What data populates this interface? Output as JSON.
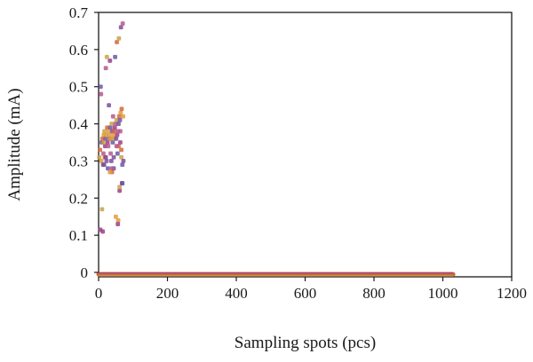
{
  "chart_data": {
    "type": "scatter",
    "title": "",
    "xlabel": "Sampling spots (pcs)",
    "ylabel": "Amplitude (mA)",
    "xlim": [
      0,
      1200
    ],
    "ylim": [
      -0.01,
      0.7
    ],
    "xticks": [
      "0",
      "200",
      "400",
      "600",
      "800",
      "1000",
      "1200"
    ],
    "yticks": [
      "0",
      "0.1",
      "0.2",
      "0.3",
      "0.4",
      "0.5",
      "0.6",
      "0.7"
    ],
    "grid": false,
    "palette": [
      "#c8a24a",
      "#d1683d",
      "#9b3f88",
      "#6a58a8",
      "#b9578c",
      "#e29a3c",
      "#7c4f9a"
    ],
    "points": [
      [
        2,
        0.31
      ],
      [
        4,
        0.33
      ],
      [
        5,
        0.115
      ],
      [
        6,
        0.5
      ],
      [
        7,
        0.48
      ],
      [
        8,
        0.3
      ],
      [
        9,
        0.35
      ],
      [
        10,
        0.17
      ],
      [
        11,
        0.36
      ],
      [
        12,
        0.11
      ],
      [
        13,
        0.29
      ],
      [
        14,
        0.32
      ],
      [
        15,
        0.37
      ],
      [
        16,
        0.29
      ],
      [
        17,
        0.38
      ],
      [
        18,
        0.31
      ],
      [
        19,
        0.34
      ],
      [
        20,
        0.36
      ],
      [
        21,
        0.55
      ],
      [
        22,
        0.37
      ],
      [
        23,
        0.3
      ],
      [
        24,
        0.58
      ],
      [
        25,
        0.39
      ],
      [
        26,
        0.35
      ],
      [
        27,
        0.28
      ],
      [
        28,
        0.34
      ],
      [
        29,
        0.38
      ],
      [
        30,
        0.45
      ],
      [
        31,
        0.37
      ],
      [
        32,
        0.36
      ],
      [
        33,
        0.57
      ],
      [
        34,
        0.39
      ],
      [
        35,
        0.32
      ],
      [
        36,
        0.36
      ],
      [
        37,
        0.3
      ],
      [
        38,
        0.4
      ],
      [
        39,
        0.27
      ],
      [
        40,
        0.38
      ],
      [
        41,
        0.35
      ],
      [
        42,
        0.42
      ],
      [
        43,
        0.37
      ],
      [
        44,
        0.31
      ],
      [
        45,
        0.36
      ],
      [
        46,
        0.38
      ],
      [
        47,
        0.39
      ],
      [
        48,
        0.58
      ],
      [
        49,
        0.4
      ],
      [
        50,
        0.15
      ],
      [
        51,
        0.36
      ],
      [
        52,
        0.41
      ],
      [
        53,
        0.62
      ],
      [
        54,
        0.37
      ],
      [
        55,
        0.32
      ],
      [
        56,
        0.38
      ],
      [
        57,
        0.14
      ],
      [
        58,
        0.4
      ],
      [
        59,
        0.63
      ],
      [
        60,
        0.42
      ],
      [
        61,
        0.22
      ],
      [
        62,
        0.41
      ],
      [
        63,
        0.38
      ],
      [
        64,
        0.43
      ],
      [
        65,
        0.66
      ],
      [
        66,
        0.31
      ],
      [
        67,
        0.44
      ],
      [
        68,
        0.24
      ],
      [
        69,
        0.29
      ],
      [
        70,
        0.67
      ],
      [
        71,
        0.42
      ],
      [
        72,
        0.3
      ],
      [
        61,
        0.23
      ],
      [
        66,
        0.33
      ],
      [
        56,
        0.13
      ],
      [
        44,
        0.28
      ],
      [
        39,
        0.28
      ],
      [
        33,
        0.27
      ],
      [
        21,
        0.31
      ],
      [
        15,
        0.35
      ],
      [
        58,
        0.34
      ],
      [
        63,
        0.35
      ],
      [
        69,
        0.24
      ],
      [
        52,
        0.34
      ]
    ],
    "baseline": {
      "x_start": 0,
      "x_end": 1030,
      "y": -0.005
    }
  }
}
